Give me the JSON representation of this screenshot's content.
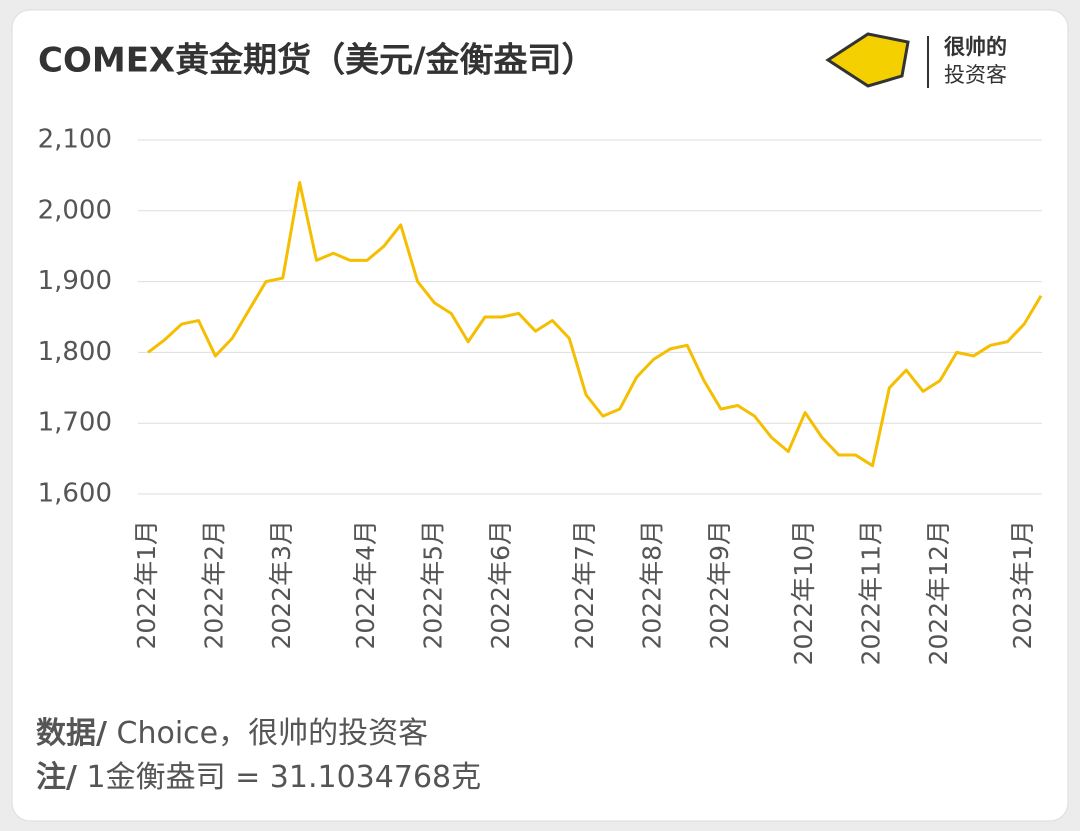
{
  "header": {
    "title": "COMEX黄金期货（美元/金衡盎司）",
    "brand_line1": "很帅的",
    "brand_line2": "投资客"
  },
  "chart_data": {
    "type": "line",
    "categories": [
      "2022年1月",
      null,
      null,
      null,
      "2022年2月",
      null,
      null,
      null,
      "2022年3月",
      null,
      null,
      null,
      null,
      "2022年4月",
      null,
      null,
      null,
      "2022年5月",
      null,
      null,
      null,
      "2022年6月",
      null,
      null,
      null,
      null,
      "2022年7月",
      null,
      null,
      null,
      "2022年8月",
      null,
      null,
      null,
      "2022年9月",
      null,
      null,
      null,
      null,
      "2022年10月",
      null,
      null,
      null,
      "2022年11月",
      null,
      null,
      null,
      "2022年12月",
      null,
      null,
      null,
      null,
      "2023年1月",
      null
    ],
    "series": [
      {
        "name": "COMEX黄金期货",
        "color": "#f5be00",
        "values": [
          1800,
          1818,
          1840,
          1845,
          1795,
          1820,
          1860,
          1900,
          1905,
          2040,
          1930,
          1940,
          1930,
          1930,
          1950,
          1980,
          1900,
          1870,
          1855,
          1815,
          1850,
          1850,
          1855,
          1830,
          1845,
          1820,
          1740,
          1710,
          1720,
          1765,
          1790,
          1805,
          1810,
          1760,
          1720,
          1725,
          1710,
          1680,
          1660,
          1715,
          1680,
          1655,
          1655,
          1640,
          1750,
          1775,
          1745,
          1760,
          1800,
          1795,
          1810,
          1815,
          1840,
          1880
        ]
      }
    ],
    "ylim": [
      1600,
      2100
    ],
    "yticks": [
      {
        "value": 1600,
        "label": "1,600"
      },
      {
        "value": 1700,
        "label": "1,700"
      },
      {
        "value": 1800,
        "label": "1,800"
      },
      {
        "value": 1900,
        "label": "1,900"
      },
      {
        "value": 2000,
        "label": "2,000"
      },
      {
        "value": 2100,
        "label": "2,100"
      }
    ],
    "grid": true
  },
  "footer": {
    "source_label": "数据/",
    "source": " Choice，很帅的投资客",
    "note_label": "注/",
    "note": " 1金衡盎司 = 31.1034768克"
  }
}
